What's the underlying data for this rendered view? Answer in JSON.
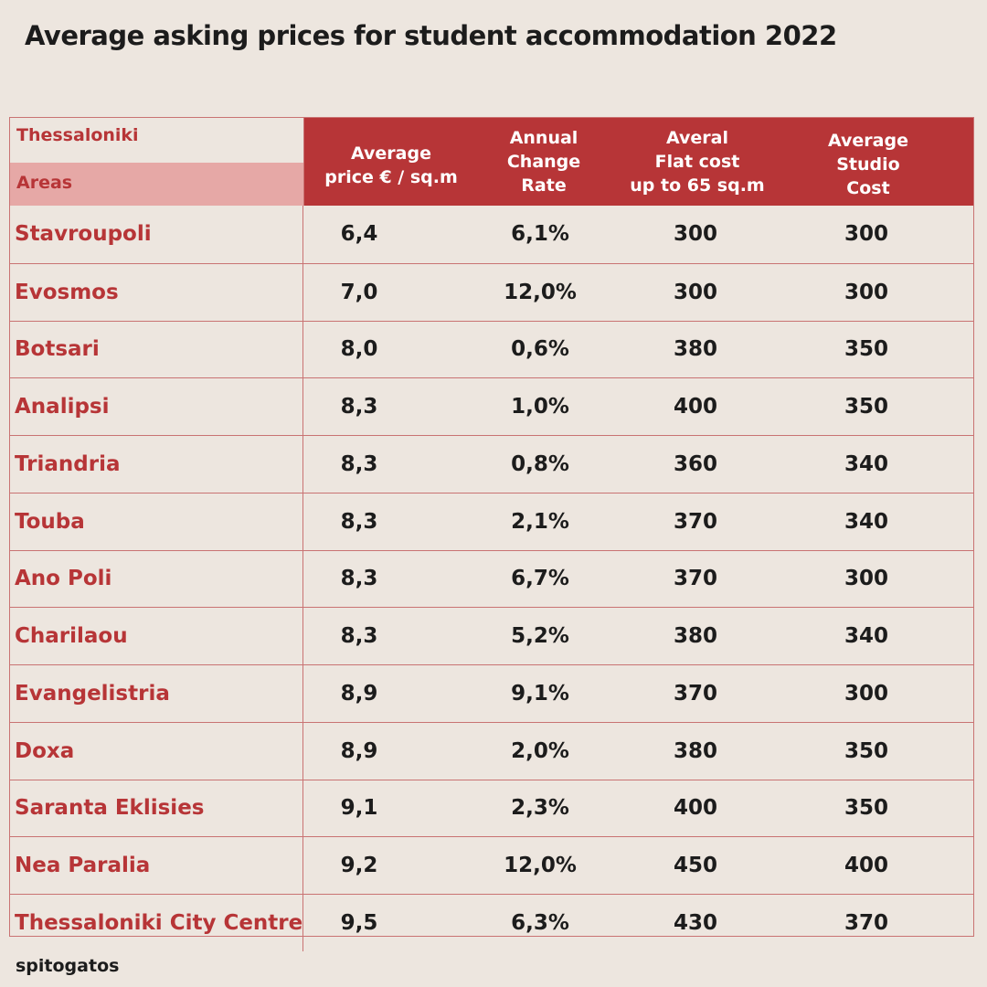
{
  "title": "Average asking prices for student accommodation 2022",
  "footer": "spitogatos",
  "colors": {
    "accent": "#b73537",
    "accent_light": "#e6a8a6",
    "background": "#ede6df",
    "text": "#1c1c1c"
  },
  "chart_data": {
    "type": "table",
    "title": "Average asking prices for student accommodation 2022",
    "corner_label": "Thessaloniki",
    "row_header_label": "Areas",
    "columns": [
      "Average\nprice € / sq.m",
      "Annual\nChange\nRate",
      "Averal\nFlat cost\nup to 65 sq.m",
      "Average\nStudio\nCost"
    ],
    "rows": [
      {
        "area": "Stavroupoli",
        "price": "6,4",
        "change": "6,1%",
        "flat": "300",
        "studio": "300"
      },
      {
        "area": "Evosmos",
        "price": "7,0",
        "change": "12,0%",
        "flat": "300",
        "studio": "300"
      },
      {
        "area": "Botsari",
        "price": "8,0",
        "change": "0,6%",
        "flat": "380",
        "studio": "350"
      },
      {
        "area": "Analipsi",
        "price": "8,3",
        "change": "1,0%",
        "flat": "400",
        "studio": "350"
      },
      {
        "area": "Triandria",
        "price": "8,3",
        "change": "0,8%",
        "flat": "360",
        "studio": "340"
      },
      {
        "area": "Touba",
        "price": "8,3",
        "change": "2,1%",
        "flat": "370",
        "studio": "340"
      },
      {
        "area": "Ano Poli",
        "price": "8,3",
        "change": "6,7%",
        "flat": "370",
        "studio": "300"
      },
      {
        "area": "Charilaou",
        "price": "8,3",
        "change": "5,2%",
        "flat": "380",
        "studio": "340"
      },
      {
        "area": "Evangelistria",
        "price": "8,9",
        "change": "9,1%",
        "flat": "370",
        "studio": "300"
      },
      {
        "area": "Doxa",
        "price": "8,9",
        "change": "2,0%",
        "flat": "380",
        "studio": "350"
      },
      {
        "area": "Saranta Eklisies",
        "price": "9,1",
        "change": "2,3%",
        "flat": "400",
        "studio": "350"
      },
      {
        "area": "Nea Paralia",
        "price": "9,2",
        "change": "12,0%",
        "flat": "450",
        "studio": "400"
      },
      {
        "area": "Thessaloniki City Centre",
        "price": "9,5",
        "change": "6,3%",
        "flat": "430",
        "studio": "370"
      }
    ]
  }
}
